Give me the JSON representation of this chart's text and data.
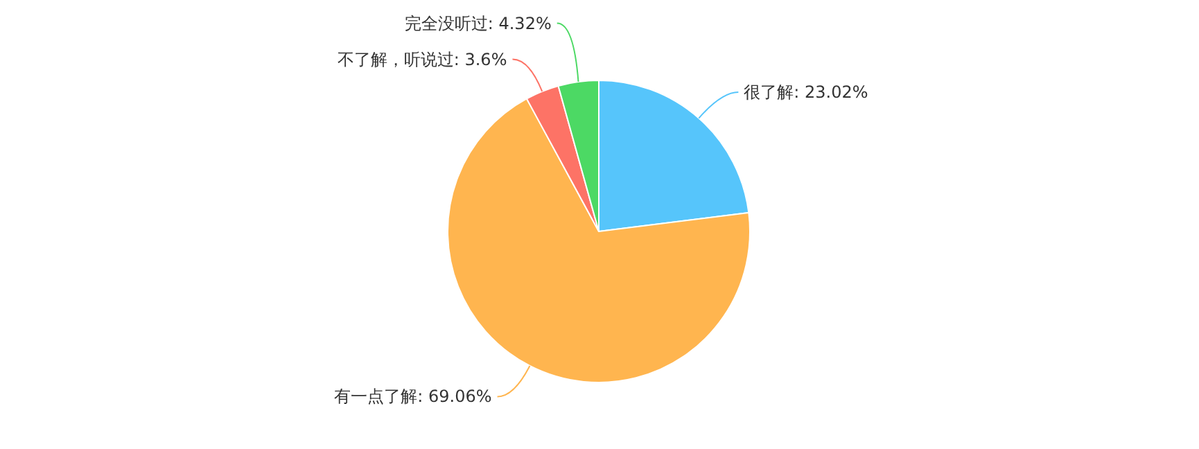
{
  "chart_data": {
    "type": "pie",
    "categories": [
      "很了解",
      "有一点了解",
      "不了解，听说过",
      "完全没听过"
    ],
    "values": [
      23.02,
      69.06,
      3.6,
      4.32
    ],
    "value_labels": [
      ": 23.02%",
      ": 69.06%",
      ": 3.6%",
      ": 4.32%"
    ],
    "colors": [
      "#56c5fb",
      "#ffb54f",
      "#fd7366",
      "#4cd964"
    ]
  }
}
